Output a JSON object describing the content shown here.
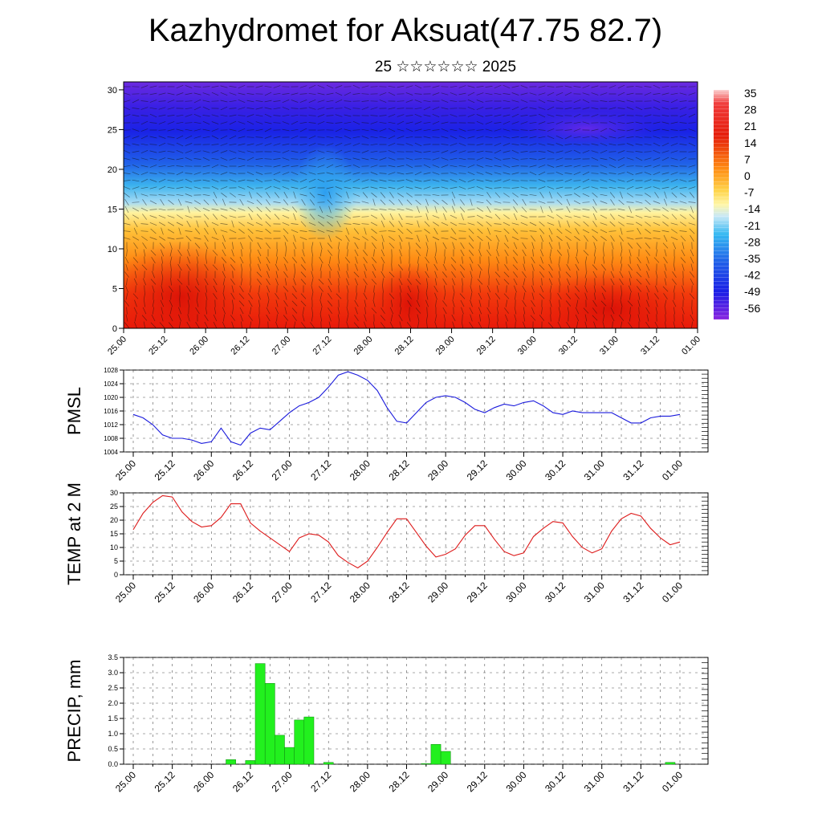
{
  "title": "Kazhydromet for Aksuat(47.75 82.7)",
  "subtitle": "25 ☆☆☆☆☆☆ 2025",
  "time_ticks": [
    "25.00",
    "25.12",
    "26.00",
    "26.12",
    "27.00",
    "27.12",
    "28.00",
    "28.12",
    "29.00",
    "29.12",
    "30.00",
    "30.12",
    "31.00",
    "31.12",
    "01.00"
  ],
  "chart_data": [
    {
      "type": "heatmap",
      "name": "cross-section",
      "x": [
        "25.00",
        "25.12",
        "26.00",
        "26.12",
        "27.00",
        "27.12",
        "28.00",
        "28.12",
        "29.00",
        "29.12",
        "30.00",
        "30.12",
        "31.00",
        "31.12",
        "01.00"
      ],
      "ylim": [
        0,
        31
      ],
      "yticks": [
        0,
        5,
        10,
        15,
        20,
        25,
        30
      ],
      "colorbar_labels": [
        "35",
        "28",
        "21",
        "14",
        "7",
        "0",
        "-7",
        "-14",
        "-21",
        "-28",
        "-35",
        "-42",
        "-49",
        "-56"
      ],
      "colorbar_range": [
        -63,
        42
      ],
      "colors": {
        "cold": "#7a1de0",
        "blue": "#1a2ee0",
        "cyan": "#2ab0f0",
        "yellow": "#fff070",
        "orange": "#ff9a10",
        "red": "#e51d0a"
      }
    },
    {
      "type": "line",
      "name": "pmsl",
      "ylabel": "PMSL",
      "ylim": [
        1004,
        1028
      ],
      "yticks": [
        1004,
        1008,
        1012,
        1016,
        1020,
        1024,
        1028
      ],
      "color": "#1a1adc",
      "values": [
        1015,
        1014,
        1012,
        1009,
        1008,
        1008,
        1007.5,
        1006.5,
        1007,
        1011,
        1007,
        1006,
        1009.5,
        1011,
        1010.5,
        1013,
        1015.5,
        1017.5,
        1018.5,
        1020,
        1023,
        1026.5,
        1027.5,
        1026.5,
        1025,
        1022,
        1017,
        1013,
        1012.5,
        1015.5,
        1018.5,
        1020,
        1020.5,
        1020,
        1018.5,
        1016.5,
        1015.5,
        1017,
        1018,
        1017.5,
        1018.5,
        1019,
        1017.5,
        1015.5,
        1015,
        1016,
        1015.5,
        1015.5,
        1015.5,
        1015.5,
        1014,
        1012.5,
        1012.5,
        1014,
        1014.5,
        1014.5,
        1015
      ]
    },
    {
      "type": "line",
      "name": "temp",
      "ylabel": "TEMP at 2 M",
      "ylim": [
        0,
        30
      ],
      "yticks": [
        0,
        5,
        10,
        15,
        20,
        25,
        30
      ],
      "color": "#dd1a1a",
      "values": [
        16.5,
        22.5,
        26.5,
        29,
        28.5,
        23,
        19.5,
        17.5,
        18,
        21,
        26,
        26,
        19,
        16,
        13.5,
        11,
        8.5,
        13.5,
        15,
        14.5,
        12,
        7,
        4.5,
        2.5,
        5,
        10,
        15.5,
        20.5,
        20.5,
        15.5,
        10.5,
        6.5,
        7.5,
        9.5,
        14.5,
        18,
        18,
        13,
        8.5,
        7,
        8,
        14,
        17,
        19.5,
        19,
        14,
        10,
        8,
        9.5,
        16,
        20.5,
        22.5,
        21.5,
        17,
        13.5,
        11,
        12
      ]
    },
    {
      "type": "bar",
      "name": "precip",
      "ylabel": "PRECIP, mm",
      "ylim": [
        0,
        3.5
      ],
      "yticks": [
        "0.0",
        "0.5",
        "1.0",
        "1.5",
        "2.0",
        "2.5",
        "3.0",
        "3.5"
      ],
      "color": "#22f01e",
      "bar_slots": 58,
      "bars": [
        {
          "slot": 10,
          "value": 0.15
        },
        {
          "slot": 12,
          "value": 0.12
        },
        {
          "slot": 13,
          "value": 3.3
        },
        {
          "slot": 14,
          "value": 2.65
        },
        {
          "slot": 15,
          "value": 0.95
        },
        {
          "slot": 16,
          "value": 0.55
        },
        {
          "slot": 17,
          "value": 1.45
        },
        {
          "slot": 18,
          "value": 1.55
        },
        {
          "slot": 20,
          "value": 0.06
        },
        {
          "slot": 30,
          "value": 0.02
        },
        {
          "slot": 31,
          "value": 0.65
        },
        {
          "slot": 32,
          "value": 0.42
        },
        {
          "slot": 55,
          "value": 0.06
        }
      ]
    }
  ]
}
